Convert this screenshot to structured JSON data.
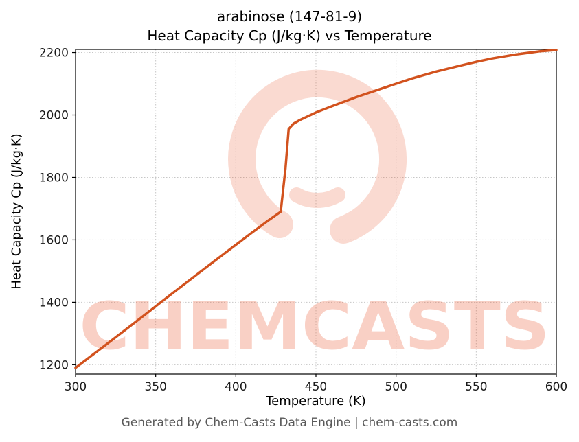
{
  "header": {
    "line1": "arabinose (147-81-9)",
    "line2": "Heat Capacity Cp (J/kg·K) vs Temperature"
  },
  "footer": {
    "text": "Generated by Chem-Casts Data Engine | chem-casts.com"
  },
  "watermark": {
    "text": "CHEMCASTS",
    "color": "#e8572e"
  },
  "chart_data": {
    "type": "line",
    "title": "arabinose (147-81-9) — Heat Capacity Cp (J/kg·K) vs Temperature",
    "xlabel": "Temperature (K)",
    "ylabel": "Heat Capacity Cp (J/kg·K)",
    "xlim": [
      300,
      600
    ],
    "ylim": [
      1170,
      2210
    ],
    "xticks": [
      300,
      350,
      400,
      450,
      500,
      550,
      600
    ],
    "yticks": [
      1200,
      1400,
      1600,
      1800,
      2000,
      2200
    ],
    "grid": true,
    "legend": false,
    "line_color": "#d2521e",
    "series": [
      {
        "x": [
          300,
          320,
          340,
          360,
          380,
          400,
          410,
          420,
          428,
          431,
          433,
          436,
          440,
          450,
          460,
          475,
          490,
          500,
          510,
          525,
          540,
          550,
          560,
          575,
          590,
          600
        ],
        "y": [
          1190,
          1268,
          1347,
          1427,
          1506,
          1584,
          1623,
          1661,
          1690,
          1830,
          1955,
          1972,
          1984,
          2008,
          2028,
          2057,
          2083,
          2100,
          2117,
          2139,
          2158,
          2170,
          2181,
          2194,
          2204,
          2208
        ]
      }
    ]
  }
}
